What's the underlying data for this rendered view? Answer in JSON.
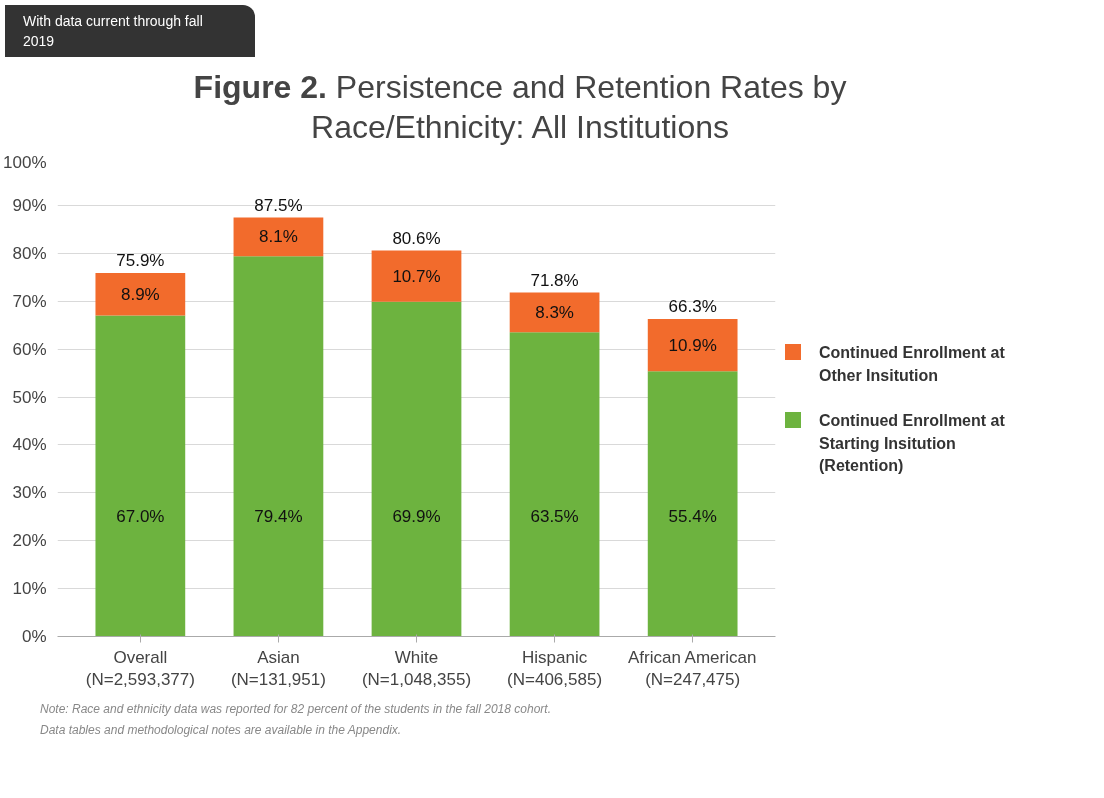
{
  "chart_data": {
    "type": "bar",
    "stacked": true,
    "title": "Figure 2. Persistence and Retention Rates by Race/Ethnicity: All Institutions",
    "subtitle": "With data current through fall 2019",
    "categories": [
      "Overall (N=2,593,377)",
      "Asian (N=131,951)",
      "White (N=1,048,355)",
      "Hispanic (N=406,585)",
      "African American (N=247,475)"
    ],
    "series": [
      {
        "name": "Continued Enrollment at Starting Insitution (Retention)",
        "color": "#6db33f",
        "values": [
          67.0,
          79.4,
          69.9,
          63.5,
          55.4
        ],
        "value_labels": [
          "67.0%",
          "79.4%",
          "69.9%",
          "63.5%",
          "55.4%"
        ]
      },
      {
        "name": "Continued Enrollment at Other Insitution",
        "color": "#f26b2c",
        "values": [
          8.9,
          8.1,
          10.7,
          8.3,
          10.9
        ],
        "value_labels": [
          "8.9%",
          "8.1%",
          "10.7%",
          "8.3%",
          "10.9%"
        ]
      }
    ],
    "totals": [
      "75.9%",
      "87.5%",
      "80.6%",
      "71.8%",
      "66.3%"
    ],
    "ylim": [
      0,
      100
    ],
    "yticks": [
      {
        "value": 0,
        "label": "0%"
      },
      {
        "value": 10,
        "label": "10%"
      },
      {
        "value": 20,
        "label": "20%"
      },
      {
        "value": 30,
        "label": "30%"
      },
      {
        "value": 40,
        "label": "40%"
      },
      {
        "value": 50,
        "label": "50%"
      },
      {
        "value": 60,
        "label": "60%"
      },
      {
        "value": 70,
        "label": "70%"
      },
      {
        "value": 80,
        "label": "80%"
      },
      {
        "value": 90,
        "label": "90%"
      },
      {
        "value": 100,
        "label": "100%"
      }
    ],
    "grid": "y",
    "legend": "right",
    "annotations": [
      "Note: Race and ethnicity data was reported for 82 percent of the students in the fall 2018 cohort.",
      "Data tables and methodological notes are available in the Appendix."
    ]
  }
}
